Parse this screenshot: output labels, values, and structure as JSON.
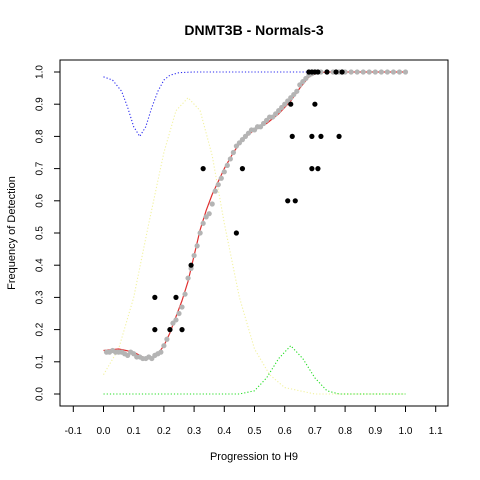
{
  "chart_data": {
    "type": "scatter",
    "title": "DNMT3B - Normals-3",
    "xlabel": "Progression to H9",
    "ylabel": "Frequency of Detection",
    "xlim": [
      -0.1,
      1.1
    ],
    "ylim": [
      0.0,
      1.0
    ],
    "xticks": [
      -0.1,
      0.0,
      0.1,
      0.2,
      0.3,
      0.4,
      0.5,
      0.6,
      0.7,
      0.8,
      0.9,
      1.0,
      1.1
    ],
    "xtick_labels": [
      "-0.1",
      "0.0",
      "0.1",
      "0.2",
      "0.3",
      "0.4",
      "0.5",
      "0.6",
      "0.7",
      "0.8",
      "0.9",
      "1.0",
      "1.1"
    ],
    "yticks": [
      0.0,
      0.1,
      0.2,
      0.3,
      0.4,
      0.5,
      0.6,
      0.7,
      0.8,
      0.9,
      1.0
    ],
    "ytick_labels": [
      "0.0",
      "0.1",
      "0.2",
      "0.3",
      "0.4",
      "0.5",
      "0.6",
      "0.7",
      "0.8",
      "0.9",
      "1.0"
    ],
    "grid": false,
    "colors": {
      "black_points": "#000000",
      "grey_points": "#b4b4b4",
      "fit_line": "#e03030",
      "blue_curve": "#2a2af0",
      "yellow_curve": "#f2f2a0",
      "green_curve": "#22dd22"
    },
    "series": [
      {
        "style": "black-points",
        "points": [
          [
            0.17,
            0.2
          ],
          [
            0.17,
            0.3
          ],
          [
            0.22,
            0.2
          ],
          [
            0.24,
            0.3
          ],
          [
            0.26,
            0.2
          ],
          [
            0.29,
            0.4
          ],
          [
            0.33,
            0.7
          ],
          [
            0.44,
            0.5
          ],
          [
            0.46,
            0.7
          ],
          [
            0.61,
            0.6
          ],
          [
            0.635,
            0.6
          ],
          [
            0.625,
            0.8
          ],
          [
            0.62,
            0.9
          ],
          [
            0.68,
            1.0
          ],
          [
            0.69,
            1.0
          ],
          [
            0.7,
            1.0
          ],
          [
            0.71,
            1.0
          ],
          [
            0.74,
            1.0
          ],
          [
            0.77,
            1.0
          ],
          [
            0.79,
            1.0
          ],
          [
            0.7,
            0.9
          ],
          [
            0.69,
            0.8
          ],
          [
            0.72,
            0.8
          ],
          [
            0.78,
            0.8
          ],
          [
            0.69,
            0.7
          ],
          [
            0.71,
            0.7
          ]
        ]
      },
      {
        "style": "grey-points",
        "points": [
          [
            0.01,
            0.13
          ],
          [
            0.02,
            0.13
          ],
          [
            0.03,
            0.135
          ],
          [
            0.04,
            0.13
          ],
          [
            0.05,
            0.13
          ],
          [
            0.06,
            0.13
          ],
          [
            0.07,
            0.125
          ],
          [
            0.08,
            0.12
          ],
          [
            0.09,
            0.13
          ],
          [
            0.1,
            0.125
          ],
          [
            0.11,
            0.115
          ],
          [
            0.12,
            0.115
          ],
          [
            0.13,
            0.11
          ],
          [
            0.14,
            0.11
          ],
          [
            0.15,
            0.115
          ],
          [
            0.16,
            0.11
          ],
          [
            0.17,
            0.12
          ],
          [
            0.18,
            0.125
          ],
          [
            0.19,
            0.13
          ],
          [
            0.2,
            0.15
          ],
          [
            0.21,
            0.17
          ],
          [
            0.22,
            0.2
          ],
          [
            0.23,
            0.22
          ],
          [
            0.24,
            0.23
          ],
          [
            0.25,
            0.25
          ],
          [
            0.26,
            0.27
          ],
          [
            0.27,
            0.31
          ],
          [
            0.28,
            0.36
          ],
          [
            0.29,
            0.39
          ],
          [
            0.3,
            0.43
          ],
          [
            0.31,
            0.46
          ],
          [
            0.32,
            0.5
          ],
          [
            0.33,
            0.53
          ],
          [
            0.34,
            0.55
          ],
          [
            0.35,
            0.56
          ],
          [
            0.36,
            0.59
          ],
          [
            0.37,
            0.63
          ],
          [
            0.38,
            0.65
          ],
          [
            0.39,
            0.67
          ],
          [
            0.4,
            0.69
          ],
          [
            0.41,
            0.71
          ],
          [
            0.42,
            0.73
          ],
          [
            0.43,
            0.75
          ],
          [
            0.44,
            0.77
          ],
          [
            0.45,
            0.78
          ],
          [
            0.46,
            0.79
          ],
          [
            0.47,
            0.8
          ],
          [
            0.48,
            0.81
          ],
          [
            0.49,
            0.82
          ],
          [
            0.5,
            0.82
          ],
          [
            0.51,
            0.83
          ],
          [
            0.52,
            0.83
          ],
          [
            0.53,
            0.84
          ],
          [
            0.54,
            0.85
          ],
          [
            0.55,
            0.86
          ],
          [
            0.56,
            0.86
          ],
          [
            0.57,
            0.87
          ],
          [
            0.58,
            0.88
          ],
          [
            0.59,
            0.89
          ],
          [
            0.6,
            0.9
          ],
          [
            0.61,
            0.91
          ],
          [
            0.62,
            0.92
          ],
          [
            0.63,
            0.93
          ],
          [
            0.64,
            0.94
          ],
          [
            0.65,
            0.96
          ],
          [
            0.66,
            0.97
          ],
          [
            0.67,
            0.98
          ],
          [
            0.68,
            0.99
          ],
          [
            0.69,
            0.995
          ],
          [
            0.7,
            1.0
          ],
          [
            0.72,
            1.0
          ],
          [
            0.74,
            1.0
          ],
          [
            0.76,
            1.0
          ],
          [
            0.78,
            1.0
          ],
          [
            0.8,
            1.0
          ],
          [
            0.82,
            1.0
          ],
          [
            0.84,
            1.0
          ],
          [
            0.86,
            1.0
          ],
          [
            0.88,
            1.0
          ],
          [
            0.9,
            1.0
          ],
          [
            0.92,
            1.0
          ],
          [
            0.94,
            1.0
          ],
          [
            0.96,
            1.0
          ],
          [
            0.98,
            1.0
          ],
          [
            1.0,
            1.0
          ]
        ]
      },
      {
        "style": "red-line",
        "points": [
          [
            0.0,
            0.135
          ],
          [
            0.05,
            0.14
          ],
          [
            0.1,
            0.13
          ],
          [
            0.14,
            0.11
          ],
          [
            0.16,
            0.11
          ],
          [
            0.18,
            0.125
          ],
          [
            0.2,
            0.15
          ],
          [
            0.22,
            0.19
          ],
          [
            0.24,
            0.24
          ],
          [
            0.26,
            0.29
          ],
          [
            0.28,
            0.35
          ],
          [
            0.3,
            0.43
          ],
          [
            0.32,
            0.51
          ],
          [
            0.34,
            0.57
          ],
          [
            0.36,
            0.62
          ],
          [
            0.38,
            0.66
          ],
          [
            0.4,
            0.7
          ],
          [
            0.43,
            0.75
          ],
          [
            0.46,
            0.79
          ],
          [
            0.5,
            0.82
          ],
          [
            0.54,
            0.84
          ],
          [
            0.58,
            0.87
          ],
          [
            0.62,
            0.91
          ],
          [
            0.65,
            0.95
          ],
          [
            0.68,
            0.985
          ],
          [
            0.71,
            0.998
          ],
          [
            0.75,
            1.0
          ],
          [
            0.85,
            1.0
          ],
          [
            1.0,
            1.0
          ]
        ]
      },
      {
        "style": "blue-dotted",
        "points": [
          [
            0.0,
            0.985
          ],
          [
            0.03,
            0.975
          ],
          [
            0.06,
            0.94
          ],
          [
            0.08,
            0.89
          ],
          [
            0.1,
            0.83
          ],
          [
            0.12,
            0.8
          ],
          [
            0.14,
            0.83
          ],
          [
            0.16,
            0.89
          ],
          [
            0.18,
            0.94
          ],
          [
            0.2,
            0.975
          ],
          [
            0.22,
            0.99
          ],
          [
            0.25,
            0.998
          ],
          [
            0.3,
            1.0
          ],
          [
            0.5,
            1.0
          ],
          [
            1.0,
            1.0
          ]
        ]
      },
      {
        "style": "yellow-dotted",
        "points": [
          [
            0.0,
            0.06
          ],
          [
            0.05,
            0.14
          ],
          [
            0.1,
            0.3
          ],
          [
            0.15,
            0.53
          ],
          [
            0.2,
            0.75
          ],
          [
            0.24,
            0.88
          ],
          [
            0.28,
            0.92
          ],
          [
            0.32,
            0.88
          ],
          [
            0.36,
            0.74
          ],
          [
            0.4,
            0.53
          ],
          [
            0.45,
            0.3
          ],
          [
            0.5,
            0.14
          ],
          [
            0.55,
            0.06
          ],
          [
            0.6,
            0.02
          ],
          [
            0.7,
            0.0
          ],
          [
            1.0,
            0.0
          ]
        ]
      },
      {
        "style": "green-dotted",
        "points": [
          [
            0.0,
            0.0
          ],
          [
            0.45,
            0.0
          ],
          [
            0.5,
            0.01
          ],
          [
            0.54,
            0.05
          ],
          [
            0.58,
            0.11
          ],
          [
            0.62,
            0.15
          ],
          [
            0.66,
            0.11
          ],
          [
            0.7,
            0.05
          ],
          [
            0.74,
            0.01
          ],
          [
            0.78,
            0.0
          ],
          [
            1.0,
            0.0
          ]
        ]
      }
    ]
  }
}
